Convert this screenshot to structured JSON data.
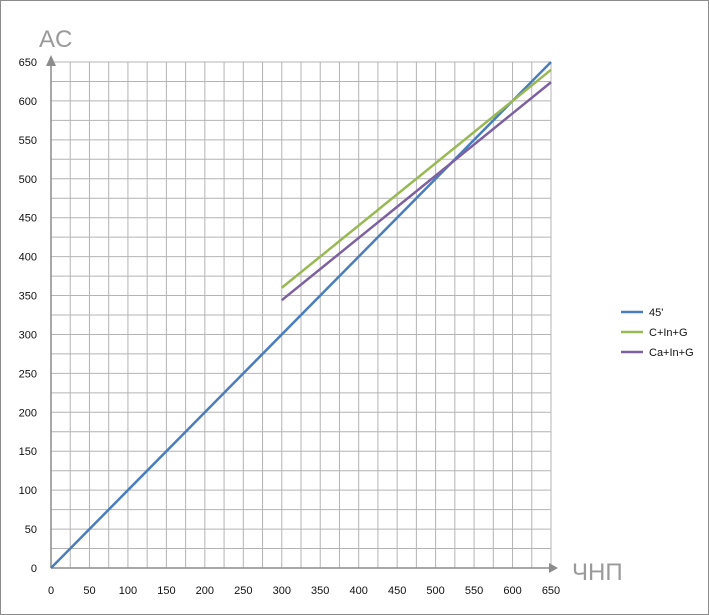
{
  "chart_data": {
    "type": "line",
    "title": "",
    "xlabel": "ЧНП",
    "ylabel": "AC",
    "xlim": [
      0,
      650
    ],
    "ylim": [
      0,
      650
    ],
    "x_ticks": [
      0,
      50,
      100,
      150,
      200,
      250,
      300,
      350,
      400,
      450,
      500,
      550,
      600,
      650
    ],
    "y_ticks": [
      0,
      50,
      100,
      150,
      200,
      250,
      300,
      350,
      400,
      450,
      500,
      550,
      600,
      650
    ],
    "x_tick_labels": [
      "0",
      "50",
      "100",
      "150",
      "200",
      "250",
      "300",
      "350",
      "400",
      "450",
      "500",
      "550",
      "600",
      "650"
    ],
    "y_tick_labels": [
      "0",
      "50",
      "100",
      "150",
      "200",
      "250",
      "300",
      "350",
      "400",
      "450",
      "500",
      "550",
      "600",
      "650"
    ],
    "grid": true,
    "legend_position": "right",
    "series": [
      {
        "name": "45'",
        "color": "#4a7ebb",
        "x": [
          0,
          650
        ],
        "y": [
          0,
          650
        ]
      },
      {
        "name": "C+In+G",
        "color": "#98b954",
        "x": [
          300,
          650
        ],
        "y": [
          360,
          640
        ]
      },
      {
        "name": "Ca+In+G",
        "color": "#7d60a0",
        "x": [
          300,
          650
        ],
        "y": [
          344,
          624
        ]
      }
    ]
  }
}
